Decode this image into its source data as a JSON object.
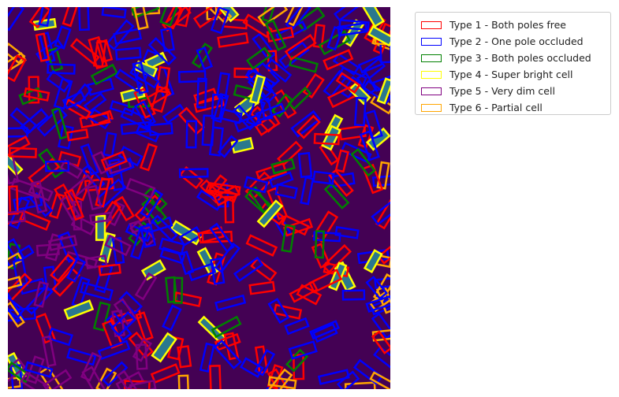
{
  "figure": {
    "background_color": "#440154",
    "cell_fill_color": "#2a788e"
  },
  "legend": {
    "placement": "upper-right outside",
    "entries": [
      {
        "label": "Type 1 - Both poles free",
        "color": "#ff0000",
        "count": 120
      },
      {
        "label": "Type 2 - One pole occluded",
        "color": "#0000ff",
        "count": 170
      },
      {
        "label": "Type 3 - Both poles occluded",
        "color": "#008000",
        "count": 35
      },
      {
        "label": "Type 4 - Super bright cell",
        "color": "#ffff00",
        "count": 30
      },
      {
        "label": "Type 5 - Very dim cell",
        "color": "#800080",
        "count": 40
      },
      {
        "label": "Type 6 - Partial cell",
        "color": "#ffa500",
        "count": 28
      }
    ]
  }
}
